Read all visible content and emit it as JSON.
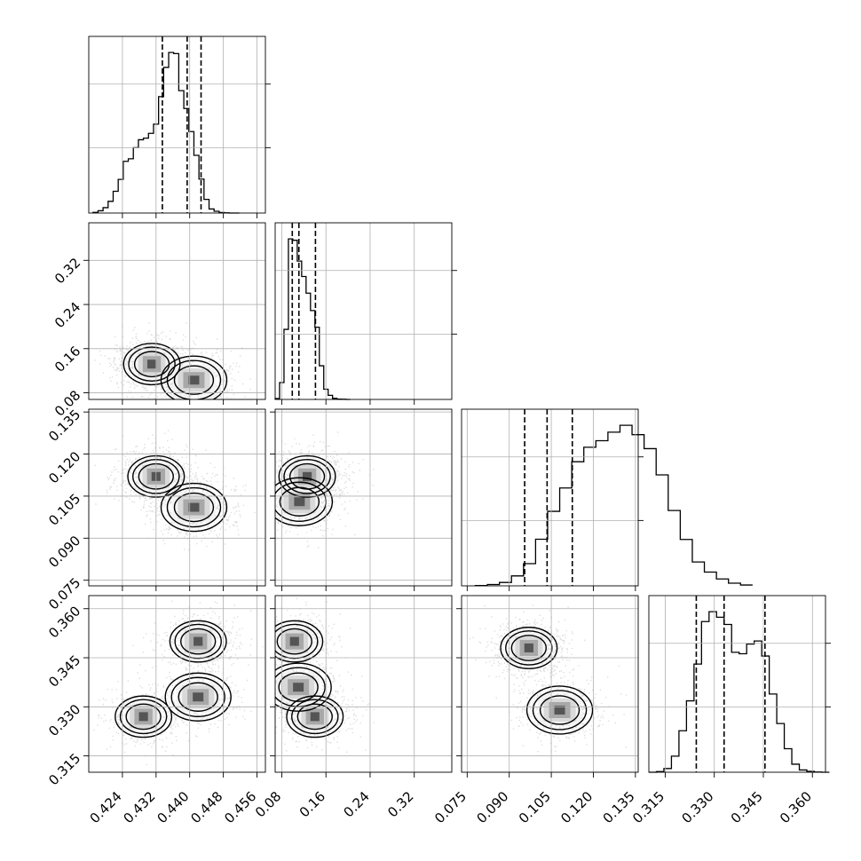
{
  "chart_data": {
    "type": "corner",
    "title": "",
    "parameters": [
      {
        "xlabel": "",
        "ylabel": "",
        "range": [
          0.416,
          0.458
        ],
        "ticks": [
          "0.424",
          "0.432",
          "0.440",
          "0.448",
          "0.456"
        ],
        "quantiles": [
          0.4335,
          0.4394,
          0.4427
        ]
      },
      {
        "xlabel": "",
        "ylabel": "",
        "range": [
          0.068,
          0.388
        ],
        "ticks": [
          "0.08",
          "0.16",
          "0.24",
          "0.32"
        ],
        "quantiles": [
          0.099,
          0.111,
          0.141
        ]
      },
      {
        "xlabel": "",
        "ylabel": "",
        "range": [
          0.073,
          0.136
        ],
        "ticks": [
          "0.075",
          "0.090",
          "0.105",
          "0.120",
          "0.135"
        ],
        "quantiles": [
          0.0955,
          0.1035,
          0.1125
        ]
      },
      {
        "xlabel": "",
        "ylabel": "",
        "range": [
          0.31,
          0.364
        ],
        "ticks": [
          "0.315",
          "0.330",
          "0.345",
          "0.360"
        ],
        "quantiles": [
          0.3245,
          0.333,
          0.3455
        ]
      }
    ],
    "histograms": [
      {
        "edges": [
          0.417,
          0.4182,
          0.4194,
          0.4206,
          0.4218,
          0.423,
          0.4242,
          0.4254,
          0.4266,
          0.4278,
          0.429,
          0.4302,
          0.4314,
          0.4326,
          0.4338,
          0.435,
          0.4362,
          0.4374,
          0.4386,
          0.4398,
          0.441,
          0.4422,
          0.4434,
          0.4446,
          0.4458,
          0.447,
          0.4482,
          0.4494,
          0.4506,
          0.4518
        ],
        "counts": [
          0.4,
          1.4,
          3.3,
          7.2,
          13.4,
          20.7,
          31.8,
          33.4,
          40.2,
          45.1,
          46.1,
          49.0,
          54.7,
          71.6,
          89.6,
          98.8,
          98.1,
          75.3,
          64.3,
          50.1,
          35.5,
          20.9,
          8.4,
          2.5,
          1.1,
          0.3,
          0.1,
          0.0,
          0.0
        ]
      },
      {
        "edges": [
          0.068,
          0.076,
          0.084,
          0.092,
          0.1,
          0.108,
          0.116,
          0.124,
          0.132,
          0.14,
          0.148,
          0.156,
          0.164,
          0.172,
          0.18,
          0.188,
          0.196,
          0.204
        ],
        "counts": [
          0.5,
          9.4,
          39.1,
          89.6,
          88.8,
          77.2,
          68.6,
          59.3,
          49.6,
          40.3,
          18.8,
          5.7,
          2.3,
          0.6,
          0.2,
          0.1,
          0.0
        ]
      },
      {
        "edges": [
          0.0779,
          0.0822,
          0.0865,
          0.0908,
          0.0951,
          0.0994,
          0.1037,
          0.108,
          0.1123,
          0.1166,
          0.1209,
          0.1252,
          0.1295,
          0.1338,
          0.1381,
          0.1424,
          0.1467,
          0.151,
          0.1553,
          0.1596,
          0.1639,
          0.1682,
          0.1725,
          0.1768
        ],
        "counts": [
          0.2,
          0.8,
          2.0,
          5.9,
          13.2,
          27.7,
          44.3,
          58.2,
          73.8,
          82.4,
          86.3,
          91.4,
          95.5,
          89.9,
          81.6,
          66.0,
          44.8,
          27.6,
          14.2,
          8.2,
          4.1,
          1.6,
          0.5
        ]
      },
      {
        "edges": [
          0.31,
          0.3123,
          0.3146,
          0.3169,
          0.3192,
          0.3215,
          0.3238,
          0.3261,
          0.3284,
          0.3307,
          0.333,
          0.3353,
          0.3376,
          0.3399,
          0.3422,
          0.3445,
          0.3468,
          0.3491,
          0.3514,
          0.3537,
          0.356,
          0.3583,
          0.3606,
          0.3629,
          0.3652
        ],
        "counts": [
          0.0,
          0.3,
          1.8,
          7.8,
          20.1,
          34.6,
          52.4,
          73.0,
          77.8,
          75.1,
          71.6,
          58.1,
          57.4,
          62.1,
          63.6,
          56.3,
          37.9,
          23.6,
          11.4,
          3.9,
          1.1,
          0.4,
          0.1,
          0.0
        ]
      }
    ],
    "pairs": [
      {
        "x": 0,
        "y": 1,
        "peaks": [
          [
            0.441,
            0.103,
            1.0
          ],
          [
            0.431,
            0.132,
            0.72
          ]
        ]
      },
      {
        "x": 0,
        "y": 2,
        "peaks": [
          [
            0.441,
            0.101,
            1.0
          ],
          [
            0.432,
            0.112,
            0.72
          ]
        ]
      },
      {
        "x": 1,
        "y": 2,
        "peaks": [
          [
            0.112,
            0.103,
            1.0
          ],
          [
            0.126,
            0.112,
            0.8
          ]
        ]
      },
      {
        "x": 0,
        "y": 3,
        "peaks": [
          [
            0.442,
            0.333,
            1.0
          ],
          [
            0.442,
            0.35,
            0.75
          ],
          [
            0.429,
            0.327,
            0.8
          ]
        ]
      },
      {
        "x": 1,
        "y": 3,
        "peaks": [
          [
            0.11,
            0.336,
            1.0
          ],
          [
            0.103,
            0.35,
            0.8
          ],
          [
            0.14,
            0.327,
            0.7
          ]
        ]
      },
      {
        "x": 2,
        "y": 3,
        "peaks": [
          [
            0.108,
            0.329,
            1.0
          ],
          [
            0.097,
            0.348,
            0.85
          ]
        ]
      }
    ],
    "colors": {
      "frame": "#000000",
      "grid": "#b0b0b0",
      "contour": "#000000",
      "points": "#000000"
    },
    "grid": true,
    "quantile_line_style": "dashed"
  }
}
